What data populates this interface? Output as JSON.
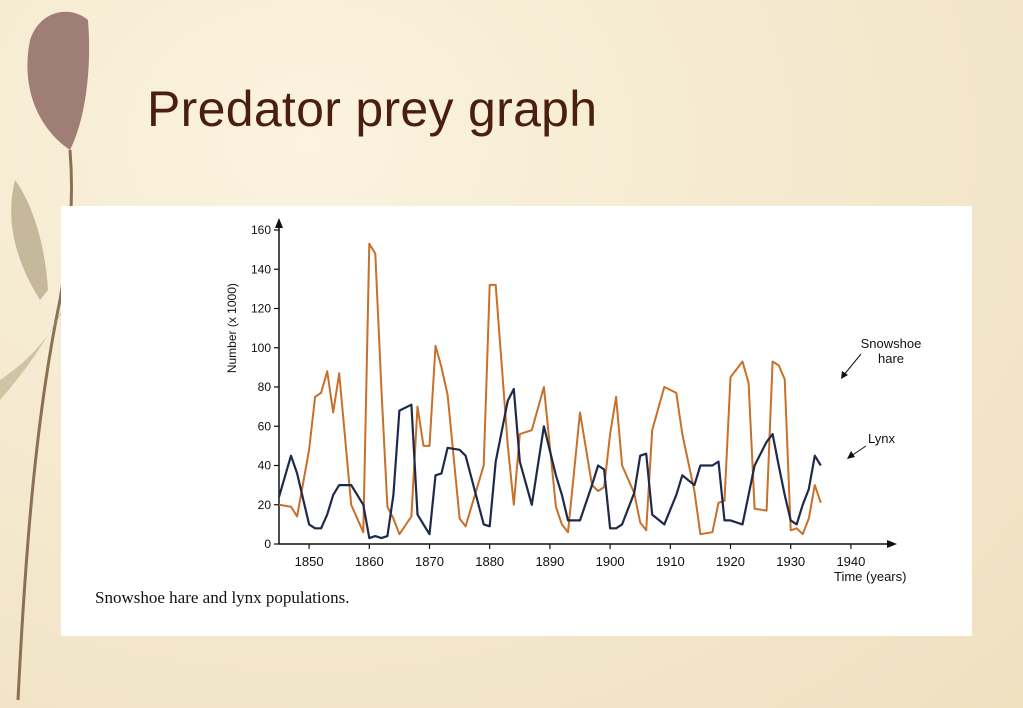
{
  "slide": {
    "title": "Predator prey graph"
  },
  "figure": {
    "caption": "Snowshoe hare and lynx populations."
  },
  "chart_data": {
    "type": "line",
    "xlabel": "Time (years)",
    "ylabel": "Number (x 1000)",
    "xlim": [
      1845,
      1945
    ],
    "ylim": [
      0,
      160
    ],
    "xticks": [
      1850,
      1860,
      1870,
      1880,
      1890,
      1900,
      1910,
      1920,
      1930,
      1940
    ],
    "yticks": [
      0,
      20,
      40,
      60,
      80,
      100,
      120,
      140,
      160
    ],
    "grid": false,
    "colors": {
      "hare": "#c8702a",
      "lynx": "#1f2a4a"
    },
    "series": [
      {
        "name": "Snowshoe hare",
        "x": [
          1845,
          1847,
          1848,
          1850,
          1851,
          1852,
          1853,
          1854,
          1855,
          1857,
          1859,
          1860,
          1861,
          1862,
          1863,
          1864,
          1865,
          1867,
          1868,
          1869,
          1870,
          1871,
          1872,
          1873,
          1875,
          1876,
          1879,
          1880,
          1881,
          1883,
          1884,
          1885,
          1887,
          1889,
          1891,
          1892,
          1893,
          1895,
          1897,
          1898,
          1899,
          1900,
          1901,
          1902,
          1904,
          1905,
          1906,
          1907,
          1909,
          1911,
          1912,
          1914,
          1915,
          1917,
          1918,
          1919,
          1920,
          1922,
          1923,
          1924,
          1926,
          1927,
          1928,
          1929,
          1930,
          1931,
          1932,
          1933,
          1934,
          1935
        ],
        "y": [
          20,
          19,
          14,
          48,
          75,
          77,
          88,
          67,
          87,
          20,
          6,
          153,
          148,
          80,
          19,
          13,
          5,
          14,
          70,
          50,
          50,
          101,
          90,
          76,
          13,
          9,
          40,
          132,
          132,
          50,
          20,
          56,
          58,
          80,
          19,
          10,
          6,
          67,
          30,
          27,
          29,
          56,
          75,
          40,
          26,
          11,
          7,
          58,
          80,
          77,
          56,
          27,
          5,
          6,
          21,
          22,
          85,
          93,
          82,
          18,
          17,
          93,
          91,
          84,
          7,
          8,
          5,
          13,
          30,
          21
        ],
        "label_text": "Snowshoe\nhare"
      },
      {
        "name": "Lynx",
        "x": [
          1845,
          1847,
          1848,
          1850,
          1851,
          1852,
          1853,
          1854,
          1855,
          1857,
          1859,
          1860,
          1861,
          1862,
          1863,
          1864,
          1865,
          1867,
          1868,
          1869,
          1870,
          1871,
          1872,
          1873,
          1875,
          1876,
          1879,
          1880,
          1881,
          1883,
          1884,
          1885,
          1887,
          1889,
          1891,
          1892,
          1893,
          1895,
          1897,
          1898,
          1899,
          1900,
          1901,
          1902,
          1904,
          1905,
          1906,
          1907,
          1909,
          1911,
          1912,
          1914,
          1915,
          1917,
          1918,
          1919,
          1920,
          1922,
          1923,
          1924,
          1926,
          1927,
          1928,
          1929,
          1930,
          1931,
          1932,
          1933,
          1934,
          1935
        ],
        "y": [
          24,
          45,
          36,
          10,
          8,
          8,
          15,
          25,
          30,
          30,
          20,
          3,
          4,
          3,
          4,
          25,
          68,
          71,
          15,
          10,
          5,
          35,
          36,
          49,
          48,
          45,
          10,
          9,
          42,
          73,
          79,
          42,
          20,
          60,
          35,
          25,
          12,
          12,
          30,
          40,
          38,
          8,
          8,
          10,
          26,
          45,
          46,
          15,
          10,
          25,
          35,
          30,
          40,
          40,
          42,
          12,
          12,
          10,
          25,
          40,
          52,
          56,
          40,
          25,
          12,
          10,
          20,
          28,
          45,
          40
        ]
      }
    ]
  }
}
